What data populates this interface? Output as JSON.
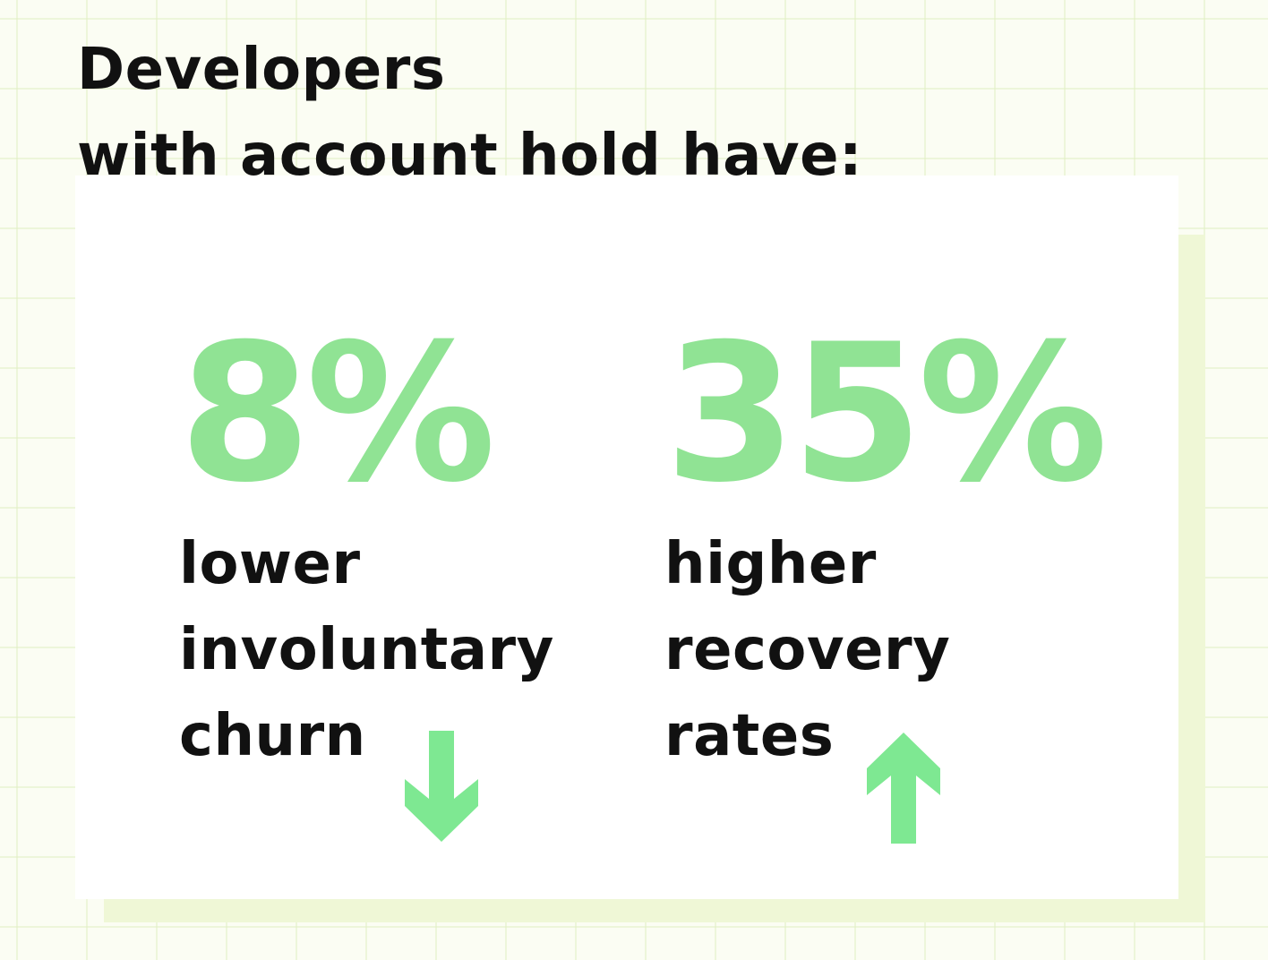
{
  "title": {
    "line1": "Developers",
    "line2": "with account hold have:"
  },
  "stats": [
    {
      "value": "8%",
      "description": [
        "lower",
        "involuntary",
        "churn"
      ],
      "direction_icon": "arrow-down-icon"
    },
    {
      "value": "35%",
      "description": [
        "higher",
        "recovery",
        "rates"
      ],
      "direction_icon": "arrow-up-icon"
    }
  ],
  "colors": {
    "accent_green": "#90e394",
    "arrow_green": "#7ee892",
    "text": "#111111",
    "grid_line": "#e2f0c4",
    "card_shadow": "#eff7d6"
  }
}
